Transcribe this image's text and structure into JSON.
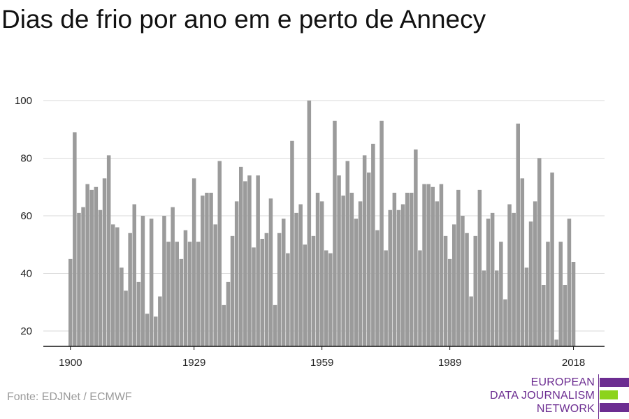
{
  "title": "Dias de frio por ano em e perto de Annecy",
  "source": "Fonte: EDJNet / ECMWF",
  "logo": {
    "lines": [
      "EUROPEAN",
      "DATA JOURNALISM",
      "NETWORK"
    ],
    "colors": {
      "purple": "#6c2d91",
      "green": "#8cd31c"
    }
  },
  "chart_data": {
    "type": "bar",
    "title": "Dias de frio por ano em e perto de Annecy",
    "xlabel": "",
    "ylabel": "",
    "x_start": 1900,
    "x_end": 2018,
    "x_ticks": [
      1900,
      1929,
      1959,
      1989,
      2018
    ],
    "y_ticks": [
      20,
      40,
      60,
      80,
      100
    ],
    "ylim": [
      15,
      100
    ],
    "grid": true,
    "bar_color": "#9b9b9b",
    "categories": [
      1900,
      1901,
      1902,
      1903,
      1904,
      1905,
      1906,
      1907,
      1908,
      1909,
      1910,
      1911,
      1912,
      1913,
      1914,
      1915,
      1916,
      1917,
      1918,
      1919,
      1920,
      1921,
      1922,
      1923,
      1924,
      1925,
      1926,
      1927,
      1928,
      1929,
      1930,
      1931,
      1932,
      1933,
      1934,
      1935,
      1936,
      1937,
      1938,
      1939,
      1940,
      1941,
      1942,
      1943,
      1944,
      1945,
      1946,
      1947,
      1948,
      1949,
      1950,
      1951,
      1952,
      1953,
      1954,
      1955,
      1956,
      1957,
      1958,
      1959,
      1960,
      1961,
      1962,
      1963,
      1964,
      1965,
      1966,
      1967,
      1968,
      1969,
      1970,
      1971,
      1972,
      1973,
      1974,
      1975,
      1976,
      1977,
      1978,
      1979,
      1980,
      1981,
      1982,
      1983,
      1984,
      1985,
      1986,
      1987,
      1988,
      1989,
      1990,
      1991,
      1992,
      1993,
      1994,
      1995,
      1996,
      1997,
      1998,
      1999,
      2000,
      2001,
      2002,
      2003,
      2004,
      2005,
      2006,
      2007,
      2008,
      2009,
      2010,
      2011,
      2012,
      2013,
      2014,
      2015,
      2016,
      2017,
      2018
    ],
    "values": [
      45,
      89,
      61,
      63,
      71,
      69,
      70,
      62,
      73,
      81,
      57,
      56,
      42,
      34,
      54,
      64,
      37,
      60,
      26,
      59,
      25,
      32,
      60,
      51,
      63,
      51,
      45,
      55,
      51,
      73,
      51,
      67,
      68,
      68,
      57,
      79,
      29,
      37,
      53,
      65,
      77,
      72,
      74,
      49,
      74,
      52,
      54,
      66,
      29,
      54,
      59,
      47,
      86,
      61,
      64,
      50,
      100,
      53,
      68,
      65,
      48,
      47,
      93,
      74,
      67,
      79,
      68,
      59,
      65,
      81,
      75,
      85,
      55,
      93,
      48,
      62,
      68,
      62,
      64,
      68,
      68,
      83,
      48,
      71,
      71,
      70,
      65,
      71,
      53,
      45,
      57,
      69,
      60,
      54,
      32,
      53,
      69,
      41,
      59,
      61,
      41,
      51,
      31,
      64,
      61,
      92,
      73,
      42,
      58,
      65,
      80,
      36,
      51,
      75,
      17,
      51,
      36,
      59,
      44
    ]
  }
}
